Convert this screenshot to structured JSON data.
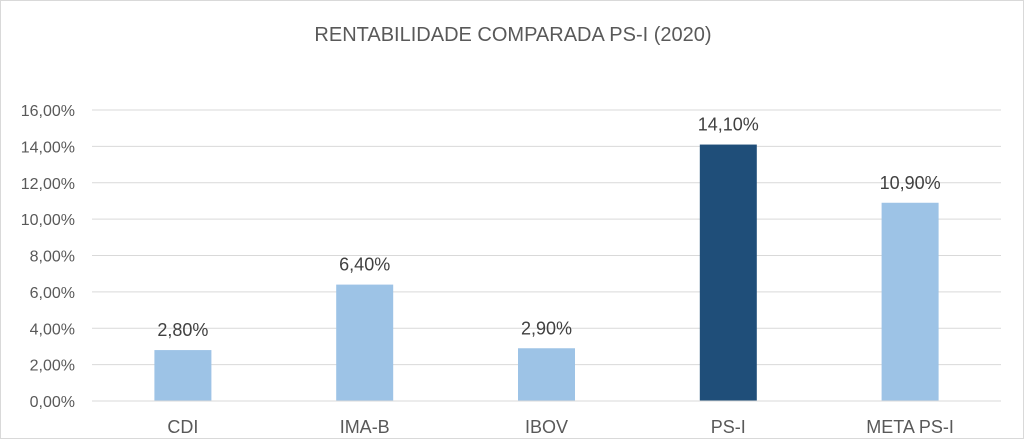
{
  "chart_data": {
    "type": "bar",
    "title": "RENTABILIDADE COMPARADA PS-I (2020)",
    "xlabel": "",
    "ylabel": "",
    "categories": [
      "CDI",
      "IMA-B",
      "IBOV",
      "PS-I",
      "META PS-I"
    ],
    "values": [
      2.8,
      6.4,
      2.9,
      14.1,
      10.9
    ],
    "value_labels": [
      "2,80%",
      "6,40%",
      "2,90%",
      "14,10%",
      "10,90%"
    ],
    "ylim": [
      0,
      16
    ],
    "yticks": [
      0,
      2,
      4,
      6,
      8,
      10,
      12,
      14,
      16
    ],
    "ytick_labels": [
      "0,00%",
      "2,00%",
      "4,00%",
      "6,00%",
      "8,00%",
      "10,00%",
      "12,00%",
      "14,00%",
      "16,00%"
    ],
    "grid": true,
    "legend": "none",
    "colors": {
      "default_bar": "#9dc3e6",
      "highlight_bar": "#1f4e79",
      "grid": "#d9d9d9",
      "text": "#595959",
      "label_text": "#404040"
    },
    "highlight_category": "PS-I"
  }
}
